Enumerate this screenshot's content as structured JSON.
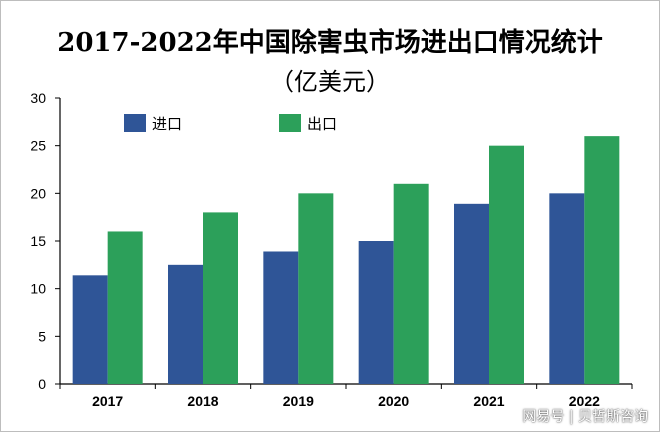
{
  "chart_data": {
    "type": "bar",
    "title": "2017-2022年中国除害虫市场进出口情况统计",
    "subtitle": "（亿美元）",
    "categories": [
      "2017",
      "2018",
      "2019",
      "2020",
      "2021",
      "2022"
    ],
    "series": [
      {
        "name": "进口",
        "color": "#2f5597",
        "values": [
          11.4,
          12.5,
          13.9,
          15.0,
          18.9,
          20.0
        ]
      },
      {
        "name": "出口",
        "color": "#2ca05a",
        "values": [
          16.0,
          18.0,
          20.0,
          21.0,
          25.0,
          26.0
        ]
      }
    ],
    "ylim": [
      0,
      30
    ],
    "yticks": [
      0,
      5,
      10,
      15,
      20,
      25,
      30
    ],
    "legend_position": "top-left",
    "grid": false
  },
  "watermark": "网易号 | 贝哲斯咨询"
}
